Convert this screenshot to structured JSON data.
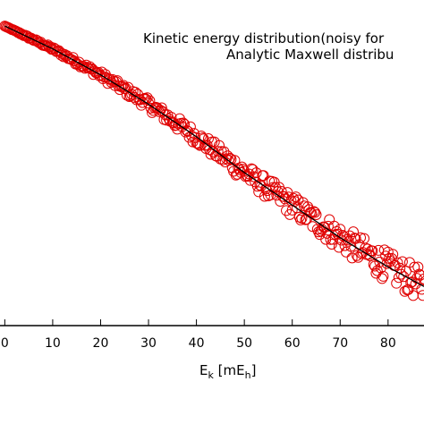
{
  "chart_data": {
    "type": "scatter",
    "xlabel": {
      "main": "E",
      "sub_k": "k",
      "bracket_open": " [mE",
      "sub_h": "h",
      "bracket_close": "]"
    },
    "x_ticks": [
      "0",
      "10",
      "20",
      "30",
      "40",
      "50",
      "60",
      "70",
      "80"
    ],
    "xlim": [
      -1,
      87.5
    ],
    "ylim": [
      0,
      1
    ],
    "grid": false,
    "legend": {
      "placement": "top-right",
      "entries": [
        "Kinetic energy distribution(noisy for",
        "Analytic Maxwell distribu"
      ]
    },
    "series": [
      {
        "kind": "points",
        "marker": "open-circle",
        "color": "#e00000",
        "x_start": 0,
        "x_end": 87.5,
        "x_step": 0.25,
        "noise_growth": 0.0006
      },
      {
        "kind": "line",
        "color": "#000000",
        "curve": [
          [
            0,
            0.92
          ],
          [
            10,
            0.85
          ],
          [
            20,
            0.77
          ],
          [
            30,
            0.68
          ],
          [
            40,
            0.58
          ],
          [
            50,
            0.47
          ],
          [
            60,
            0.37
          ],
          [
            70,
            0.27
          ],
          [
            80,
            0.18
          ],
          [
            87.5,
            0.12
          ]
        ]
      }
    ]
  }
}
